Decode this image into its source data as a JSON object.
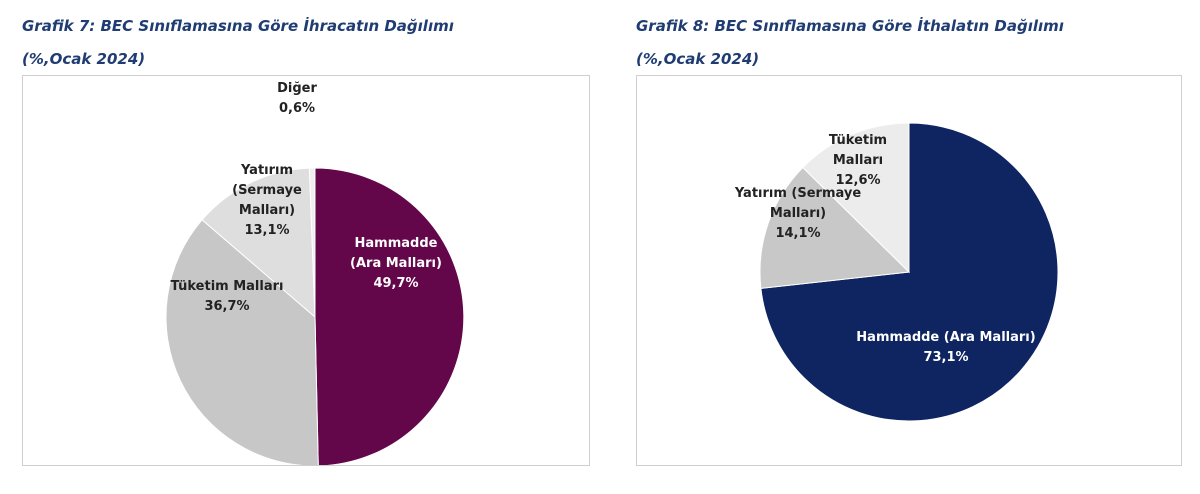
{
  "chart_data": [
    {
      "type": "pie",
      "title_line1": "Grafik 7: BEC Sınıflamasına Göre İhracatın Dağılımı",
      "title_line2": "(%,Ocak 2024)",
      "slices": [
        {
          "label_lines": [
            "Hammadde",
            "(Ara Malları)"
          ],
          "value": 49.7,
          "value_text": "49,7%",
          "color": "#63064a",
          "text_color": "#ffffff"
        },
        {
          "label_lines": [
            "Tüketim Malları"
          ],
          "value": 36.7,
          "value_text": "36,7%",
          "color": "#c7c7c7",
          "text_color": "#222222"
        },
        {
          "label_lines": [
            "Yatırım",
            "(Sermaye",
            "Malları)"
          ],
          "value": 13.1,
          "value_text": "13,1%",
          "color": "#dedede",
          "text_color": "#222222"
        },
        {
          "label_lines": [
            "Diğer"
          ],
          "value": 0.6,
          "value_text": "0,6%",
          "color": "#eeeeee",
          "text_color": "#222222"
        }
      ]
    },
    {
      "type": "pie",
      "title_line1": "Grafik 8: BEC Sınıflamasına Göre İthalatın Dağılımı",
      "title_line2": "(%,Ocak 2024)",
      "slices": [
        {
          "label_lines": [
            "Hammadde (Ara Malları)"
          ],
          "value": 73.1,
          "value_text": "73,1%",
          "color": "#0e2561",
          "text_color": "#ffffff"
        },
        {
          "label_lines": [
            "Yatırım (Sermaye",
            "Malları)"
          ],
          "value": 14.1,
          "value_text": "14,1%",
          "color": "#c8c8c8",
          "text_color": "#222222"
        },
        {
          "label_lines": [
            "Tüketim",
            "Malları"
          ],
          "value": 12.6,
          "value_text": "12,6%",
          "color": "#ececec",
          "text_color": "#222222"
        }
      ]
    }
  ]
}
